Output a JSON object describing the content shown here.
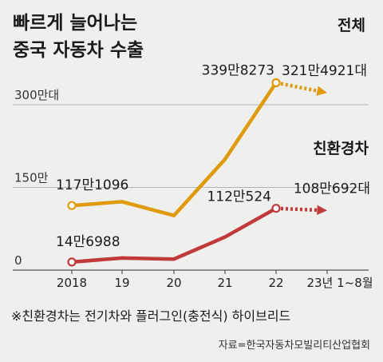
{
  "chart_data": {
    "type": "line",
    "title": [
      "빠르게 늘어나는",
      "중국 자동차 수출"
    ],
    "categories": [
      "2018",
      "19",
      "20",
      "21",
      "22",
      "23년 1~8월"
    ],
    "y_ticks": [
      {
        "value": 0,
        "label": "0"
      },
      {
        "value": 150,
        "label": "150만"
      },
      {
        "value": 300,
        "label": "300만대"
      }
    ],
    "ylim": [
      0,
      340
    ],
    "grid": true,
    "series": [
      {
        "name": "전체",
        "color": "#e09a0e",
        "values": [
          117.1,
          124,
          99,
          201,
          339.8273,
          321.4921
        ],
        "projected_from_index": 4,
        "data_labels": [
          {
            "index": 0,
            "text": "117만1096"
          },
          {
            "index": 4,
            "text": "339만8273"
          },
          {
            "index": 5,
            "text": "321만4921대"
          }
        ]
      },
      {
        "name": "친환경차",
        "color": "#c13a3a",
        "values": [
          14.6988,
          22,
          20,
          60,
          112.0524,
          108.0692
        ],
        "projected_from_index": 4,
        "data_labels": [
          {
            "index": 0,
            "text": "14만6988"
          },
          {
            "index": 4,
            "text": "112만524"
          },
          {
            "index": 5,
            "text": "108만692대"
          }
        ]
      }
    ]
  },
  "footnote": "※친환경차는 전기차와 플러그인(충전식) 하이브리드",
  "source": "자료=한국자동차모빌리티산업협회"
}
